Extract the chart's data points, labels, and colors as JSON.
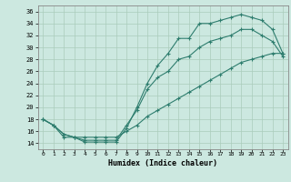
{
  "xlabel": "Humidex (Indice chaleur)",
  "xlim": [
    -0.5,
    23.5
  ],
  "ylim": [
    13,
    37
  ],
  "xticks": [
    0,
    1,
    2,
    3,
    4,
    5,
    6,
    7,
    8,
    9,
    10,
    11,
    12,
    13,
    14,
    15,
    16,
    17,
    18,
    19,
    20,
    21,
    22,
    23
  ],
  "yticks": [
    14,
    16,
    18,
    20,
    22,
    24,
    26,
    28,
    30,
    32,
    34,
    36
  ],
  "bg_color": "#cce8e0",
  "line_color": "#2e7d6e",
  "grid_color": "#aaccbb",
  "line1_x": [
    0,
    1,
    2,
    3,
    4,
    5,
    6,
    7,
    8,
    9,
    10,
    11,
    12,
    13,
    14,
    15,
    16,
    17,
    18,
    19,
    20,
    21,
    22,
    23
  ],
  "line1_y": [
    18,
    17,
    15,
    15,
    14.2,
    14.2,
    14.2,
    14.2,
    16.5,
    20,
    24,
    27,
    29,
    31.5,
    31.5,
    34,
    34,
    34.5,
    35,
    35.5,
    35,
    34.5,
    33,
    29
  ],
  "line2_x": [
    0,
    1,
    2,
    3,
    4,
    5,
    6,
    7,
    8,
    9,
    10,
    11,
    12,
    13,
    14,
    15,
    16,
    17,
    18,
    19,
    20,
    21,
    22,
    23
  ],
  "line2_y": [
    18,
    17,
    15.5,
    15,
    14.5,
    14.5,
    14.5,
    14.5,
    17,
    19.5,
    23,
    25,
    26,
    28,
    28.5,
    30,
    31,
    31.5,
    32,
    33,
    33,
    32,
    31,
    28.5
  ],
  "line3_x": [
    0,
    1,
    2,
    3,
    4,
    5,
    6,
    7,
    8,
    9,
    10,
    11,
    12,
    13,
    14,
    15,
    16,
    17,
    18,
    19,
    20,
    21,
    22,
    23
  ],
  "line3_y": [
    18,
    17,
    15.5,
    15,
    15,
    15,
    15,
    15,
    16,
    17,
    18.5,
    19.5,
    20.5,
    21.5,
    22.5,
    23.5,
    24.5,
    25.5,
    26.5,
    27.5,
    28,
    28.5,
    29,
    29
  ]
}
